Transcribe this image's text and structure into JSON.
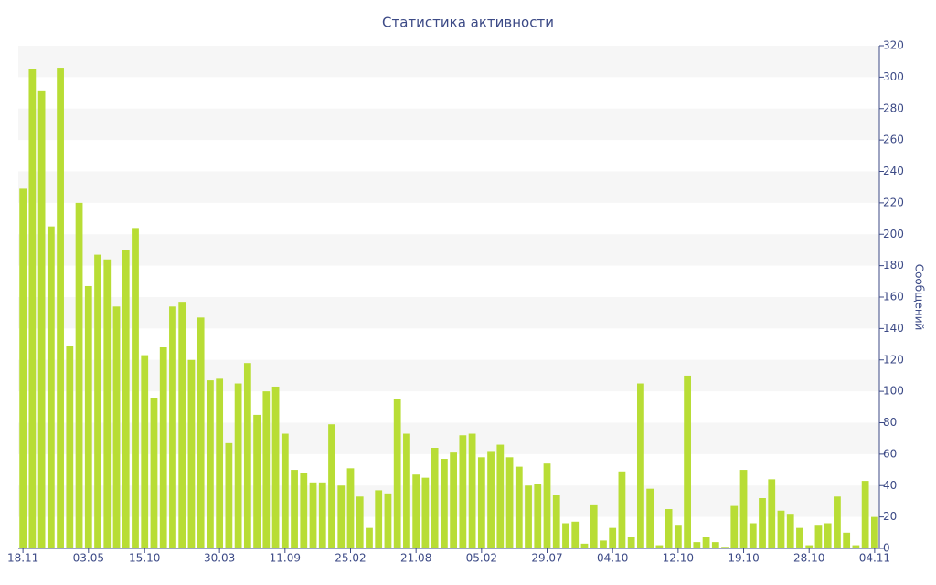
{
  "chart_data": {
    "type": "bar",
    "title": "Статистика активности",
    "y_axis_label": "Сообщений",
    "categories": [
      "18.11",
      null,
      null,
      null,
      null,
      null,
      null,
      "03.05",
      null,
      null,
      null,
      null,
      null,
      "15.10",
      null,
      null,
      null,
      null,
      null,
      null,
      null,
      "30.03",
      null,
      null,
      null,
      null,
      null,
      null,
      "11.09",
      null,
      null,
      null,
      null,
      null,
      null,
      "25.02",
      null,
      null,
      null,
      null,
      null,
      null,
      "21.08",
      null,
      null,
      null,
      null,
      null,
      null,
      "05.02",
      null,
      null,
      null,
      null,
      null,
      null,
      "29.07",
      null,
      null,
      null,
      null,
      null,
      null,
      "04.10",
      null,
      null,
      null,
      null,
      null,
      null,
      "12.10",
      null,
      null,
      null,
      null,
      null,
      null,
      "19.10",
      null,
      null,
      null,
      null,
      null,
      null,
      "28.10",
      null,
      null,
      null,
      null,
      null,
      null,
      "04.11"
    ],
    "values": [
      229,
      305,
      291,
      205,
      306,
      129,
      220,
      167,
      187,
      184,
      154,
      190,
      204,
      123,
      96,
      128,
      154,
      157,
      120,
      147,
      107,
      108,
      67,
      105,
      118,
      85,
      100,
      103,
      73,
      50,
      48,
      42,
      42,
      79,
      40,
      51,
      33,
      13,
      37,
      35,
      95,
      73,
      47,
      45,
      64,
      57,
      61,
      72,
      73,
      58,
      62,
      66,
      58,
      52,
      40,
      41,
      54,
      34,
      16,
      17,
      3,
      28,
      5,
      13,
      49,
      7,
      105,
      38,
      2,
      25,
      15,
      110,
      4,
      7,
      4,
      1,
      27,
      50,
      16,
      32,
      44,
      24,
      22,
      13,
      2,
      15,
      16,
      33,
      10,
      2,
      43,
      20
    ],
    "color": "#b8dd35",
    "ylim": [
      0,
      320
    ],
    "yticks": [
      0,
      20,
      40,
      60,
      80,
      100,
      120,
      140,
      160,
      180,
      200,
      220,
      240,
      260,
      280,
      300,
      320
    ],
    "grid": true
  }
}
